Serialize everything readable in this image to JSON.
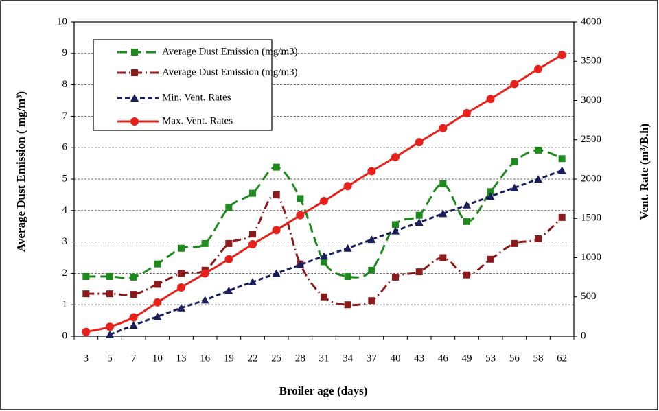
{
  "chart_data": {
    "type": "line",
    "x_label": "Broiler age (days)",
    "y_label": "Average Dust Emission ( mg/m³)",
    "y2_label": "Vent. Rate (m³/B.h)",
    "categories": [
      "3",
      "5",
      "7",
      "10",
      "13",
      "16",
      "19",
      "22",
      "25",
      "28",
      "31",
      "34",
      "37",
      "40",
      "43",
      "46",
      "49",
      "53",
      "56",
      "58",
      "62"
    ],
    "ylim": [
      0,
      10
    ],
    "yticks": [
      0,
      1,
      2,
      3,
      4,
      5,
      6,
      7,
      8,
      9,
      10
    ],
    "y2lim": [
      0,
      4000
    ],
    "y2ticks": [
      0,
      500,
      1000,
      1500,
      2000,
      2500,
      3000,
      3500,
      4000
    ],
    "grid": true,
    "legend": "upper left",
    "series": [
      {
        "name": "Average Dust Emission  (mg/m3)",
        "color": "#1e8a1e",
        "marker": "square",
        "dash": "long",
        "values": [
          1.9,
          1.9,
          1.88,
          2.3,
          2.8,
          2.95,
          4.1,
          4.55,
          5.38,
          4.38,
          2.37,
          1.9,
          2.1,
          3.55,
          3.85,
          4.85,
          3.65,
          4.6,
          5.55,
          5.92,
          5.65
        ]
      },
      {
        "name": "Average Dust Emission  (mg/m3)",
        "color": "#8b1a1a",
        "marker": "square",
        "dash": "dashdot",
        "values": [
          1.35,
          1.35,
          1.33,
          1.65,
          2.0,
          2.1,
          2.95,
          3.25,
          4.5,
          2.3,
          1.25,
          1.0,
          1.13,
          1.88,
          2.05,
          2.5,
          1.95,
          2.45,
          2.95,
          3.1,
          3.78
        ]
      },
      {
        "name": "Min. Vent. Rates",
        "color": "#1a1f5c",
        "marker": "triangle",
        "dash": "short",
        "axis": "y2",
        "values": [
          null,
          20,
          140,
          250,
          360,
          460,
          580,
          690,
          800,
          910,
          1020,
          1120,
          1230,
          1340,
          1450,
          1560,
          1670,
          1780,
          1890,
          2000,
          2110
        ]
      },
      {
        "name": "Max. Vent. Rates",
        "color": "#e8201a",
        "marker": "circle",
        "dash": "solid",
        "axis": "y2",
        "values": [
          55,
          120,
          240,
          430,
          620,
          800,
          980,
          1170,
          1350,
          1540,
          1720,
          1910,
          2100,
          2280,
          2470,
          2650,
          2840,
          3020,
          3210,
          3400,
          3580
        ]
      }
    ]
  }
}
